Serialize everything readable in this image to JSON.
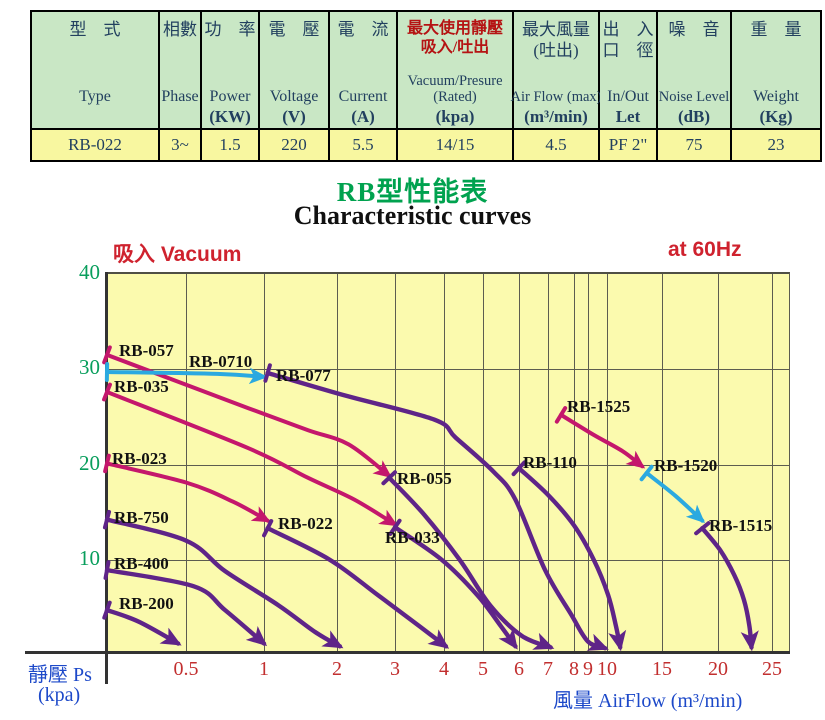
{
  "table": {
    "columns": [
      {
        "zh": [
          "型　式"
        ],
        "zh_red": false,
        "en": [
          "Type"
        ],
        "unit": "",
        "value": "RB-022"
      },
      {
        "zh": [
          "相數"
        ],
        "zh_red": false,
        "en": [
          "Phase"
        ],
        "unit": "",
        "value": "3~"
      },
      {
        "zh": [
          "功　率"
        ],
        "zh_red": false,
        "en": [
          "Power"
        ],
        "unit": "(KW)",
        "value": "1.5"
      },
      {
        "zh": [
          "電　壓"
        ],
        "zh_red": false,
        "en": [
          "Voltage"
        ],
        "unit": "(V)",
        "value": "220"
      },
      {
        "zh": [
          "電　流"
        ],
        "zh_red": false,
        "en": [
          "Current"
        ],
        "unit": "(A)",
        "value": "5.5"
      },
      {
        "zh": [
          "最大使用靜壓",
          "吸入/吐出"
        ],
        "zh_red": true,
        "en": [
          "Vacuum/Presure",
          "(Rated)"
        ],
        "unit": "(kpa)",
        "value": "14/15"
      },
      {
        "zh": [
          "最大風量",
          "(吐出)"
        ],
        "zh_red": false,
        "en": [
          "Air Flow (max)"
        ],
        "unit": "(m³/min)",
        "value": "4.5"
      },
      {
        "zh": [
          "出　入",
          "口　徑"
        ],
        "zh_red": false,
        "en": [
          "In/Out"
        ],
        "unit": "Let",
        "value": "PF 2\""
      },
      {
        "zh": [
          "噪　音"
        ],
        "zh_red": false,
        "en": [
          "Noise Level"
        ],
        "unit": "(dB)",
        "value": "75"
      },
      {
        "zh": [
          "重　量"
        ],
        "zh_red": false,
        "en": [
          "Weight"
        ],
        "unit": "(Kg)",
        "value": "23"
      }
    ]
  },
  "title": {
    "zh": "RB型性能表",
    "en": "Characteristic curves"
  },
  "chart": {
    "corner_label": "吸入 Vacuum",
    "freq_label": "at 60Hz",
    "y_axis_label_1": "靜壓 Ps",
    "y_axis_label_2": "(kpa)",
    "x_axis_label": "風量 AirFlow (m³/min)"
  },
  "chart_data": {
    "type": "line",
    "title": "RB型性能表 / Characteristic curves",
    "annotation": "at 60Hz",
    "xlabel": "風量 AirFlow (m³/min)",
    "ylabel": "靜壓 Ps (kpa)",
    "x_ticks": [
      0.5,
      1,
      2,
      3,
      4,
      5,
      6,
      7,
      8,
      9,
      10,
      15,
      20,
      25
    ],
    "y_ticks": [
      40,
      30,
      20,
      10
    ],
    "ylim": [
      0,
      40
    ],
    "x_scale": "log-like",
    "grid": true,
    "colors": {
      "magenta": "#c4176c",
      "cyan": "#2ba9e0",
      "purple": "#5f2488"
    },
    "series": [
      {
        "name": "RB-057",
        "color": "#c4176c",
        "points": [
          [
            0.4,
            31.3
          ],
          [
            0.9,
            25.7
          ],
          [
            1.6,
            23.4
          ],
          [
            2.2,
            21.9
          ],
          [
            2.9,
            18.6
          ]
        ]
      },
      {
        "name": "RB-0710",
        "color": "#2ba9e0",
        "points": [
          [
            0.4,
            29.5
          ],
          [
            0.7,
            29.3
          ],
          [
            1.0,
            29.0
          ]
        ]
      },
      {
        "name": "RB-035",
        "color": "#c4176c",
        "points": [
          [
            0.4,
            27.4
          ],
          [
            0.9,
            21.5
          ],
          [
            1.6,
            18.4
          ],
          [
            2.3,
            16.1
          ],
          [
            3.0,
            13.5
          ]
        ]
      },
      {
        "name": "RB-023",
        "color": "#c4176c",
        "points": [
          [
            0.4,
            19.9
          ],
          [
            0.5,
            17.9
          ],
          [
            0.8,
            15.9
          ],
          [
            1.05,
            13.9
          ]
        ]
      },
      {
        "name": "RB-077",
        "color": "#5f2488",
        "points": [
          [
            1.05,
            29.4
          ],
          [
            2.1,
            27.1
          ],
          [
            3.8,
            24.5
          ],
          [
            4.3,
            22.6
          ],
          [
            5.3,
            19.0
          ],
          [
            5.9,
            16.1
          ],
          [
            6.9,
            8.7
          ],
          [
            7.9,
            4.0
          ],
          [
            9.0,
            1.2
          ],
          [
            9.9,
            0.5
          ]
        ]
      },
      {
        "name": "RB-022",
        "color": "#5f2488",
        "points": [
          [
            1.05,
            13.1
          ],
          [
            1.9,
            9.8
          ],
          [
            2.7,
            6.1
          ],
          [
            3.5,
            2.8
          ],
          [
            4.05,
            0.7
          ]
        ]
      },
      {
        "name": "RB-033",
        "color": "#5f2488",
        "points": [
          [
            3.0,
            13.2
          ],
          [
            3.95,
            9.8
          ],
          [
            4.85,
            6.1
          ],
          [
            5.5,
            2.8
          ],
          [
            5.9,
            0.7
          ]
        ]
      },
      {
        "name": "RB-055",
        "color": "#5f2488",
        "points": [
          [
            2.9,
            18.4
          ],
          [
            3.6,
            14.5
          ],
          [
            4.4,
            9.8
          ],
          [
            5.2,
            5.0
          ],
          [
            6.1,
            1.8
          ],
          [
            7.1,
            0.6
          ]
        ]
      },
      {
        "name": "RB-750",
        "color": "#5f2488",
        "points": [
          [
            0.4,
            14.0
          ],
          [
            0.5,
            11.8
          ],
          [
            0.75,
            8.6
          ],
          [
            1.2,
            5.0
          ],
          [
            1.7,
            2.2
          ],
          [
            2.05,
            0.7
          ]
        ]
      },
      {
        "name": "RB-400",
        "color": "#5f2488",
        "points": [
          [
            0.4,
            8.7
          ],
          [
            0.55,
            7.0
          ],
          [
            0.75,
            4.5
          ],
          [
            1.0,
            1.0
          ]
        ]
      },
      {
        "name": "RB-200",
        "color": "#5f2488",
        "points": [
          [
            0.4,
            4.5
          ],
          [
            0.44,
            3.3
          ],
          [
            0.49,
            1.0
          ]
        ]
      },
      {
        "name": "RB-110",
        "color": "#5f2488",
        "points": [
          [
            6.0,
            19.4
          ],
          [
            7.0,
            16.6
          ],
          [
            8.0,
            13.4
          ],
          [
            9.3,
            9.8
          ],
          [
            10.1,
            6.1
          ],
          [
            10.8,
            2.9
          ],
          [
            11.2,
            0.6
          ]
        ]
      },
      {
        "name": "RB-1525",
        "color": "#c4176c",
        "points": [
          [
            7.5,
            25.0
          ],
          [
            9.3,
            22.9
          ],
          [
            11.4,
            21.2
          ],
          [
            13.2,
            19.6
          ]
        ]
      },
      {
        "name": "RB-1520",
        "color": "#2ba9e0",
        "points": [
          [
            13.6,
            18.9
          ],
          [
            16.2,
            16.5
          ],
          [
            18.6,
            13.9
          ]
        ]
      },
      {
        "name": "RB-1515",
        "color": "#5f2488",
        "points": [
          [
            18.6,
            13.1
          ],
          [
            20.2,
            10.8
          ],
          [
            21.5,
            8.2
          ],
          [
            22.4,
            5.6
          ],
          [
            22.9,
            2.9
          ],
          [
            23.1,
            0.6
          ]
        ]
      }
    ]
  }
}
